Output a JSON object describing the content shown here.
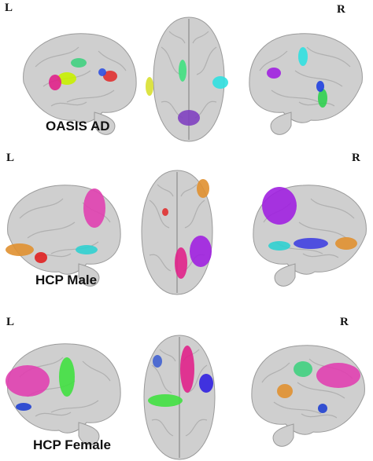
{
  "rows": [
    {
      "left": "L",
      "right": "R",
      "label": "OASIS AD"
    },
    {
      "left": "L",
      "right": "R",
      "label": "HCP Male"
    },
    {
      "left": "L",
      "right": "R",
      "label": "HCP Female"
    }
  ]
}
